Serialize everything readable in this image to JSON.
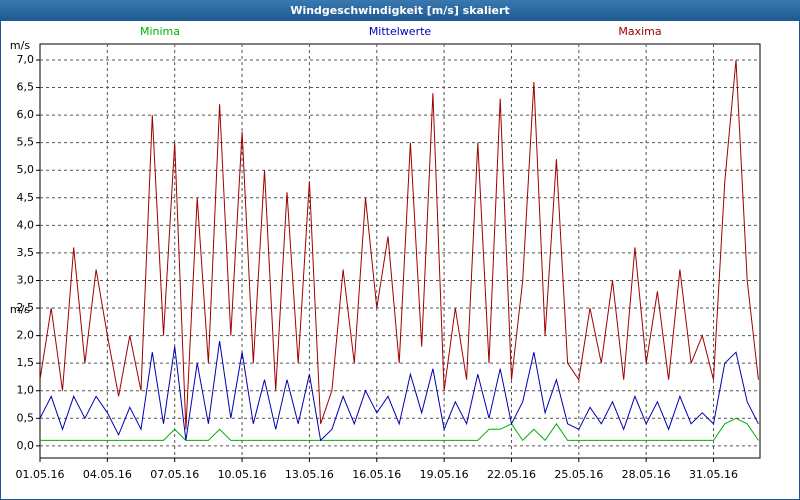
{
  "chart_data": {
    "type": "line",
    "title": "Windgeschwindigkeit [m/s] skaliert",
    "y_unit": "m/s",
    "legend": "top",
    "grid": true,
    "xlim": [
      0,
      32.07
    ],
    "ylim": [
      -0.22,
      7.29
    ],
    "xticks": [
      {
        "value": 0,
        "label": "01.05.16"
      },
      {
        "value": 3,
        "label": "04.05.16"
      },
      {
        "value": 6,
        "label": "07.05.16"
      },
      {
        "value": 9,
        "label": "10.05.16"
      },
      {
        "value": 12,
        "label": "13.05.16"
      },
      {
        "value": 15,
        "label": "16.05.16"
      },
      {
        "value": 18,
        "label": "19.05.16"
      },
      {
        "value": 21,
        "label": "22.05.16"
      },
      {
        "value": 24,
        "label": "25.05.16"
      },
      {
        "value": 27,
        "label": "28.05.16"
      },
      {
        "value": 30,
        "label": "31.05.16"
      }
    ],
    "yticks": [
      {
        "value": 0,
        "label": "0,0"
      },
      {
        "value": 0.5,
        "label": "0,5"
      },
      {
        "value": 1,
        "label": "1,0"
      },
      {
        "value": 1.5,
        "label": "1,5"
      },
      {
        "value": 2,
        "label": "2,0"
      },
      {
        "value": 2.5,
        "label": "2,5"
      },
      {
        "value": 3,
        "label": "3,0"
      },
      {
        "value": 3.5,
        "label": "3,5"
      },
      {
        "value": 4,
        "label": "4,0"
      },
      {
        "value": 4.5,
        "label": "4,5"
      },
      {
        "value": 5,
        "label": "5,0"
      },
      {
        "value": 5.5,
        "label": "5,5"
      },
      {
        "value": 6,
        "label": "6,0"
      },
      {
        "value": 6.5,
        "label": "6,5"
      },
      {
        "value": 7,
        "label": "7,0"
      }
    ],
    "x": [
      0,
      0.5,
      1,
      1.5,
      2,
      2.5,
      3,
      3.5,
      4,
      4.5,
      5,
      5.5,
      6,
      6.5,
      7,
      7.5,
      8,
      8.5,
      9,
      9.5,
      10,
      10.5,
      11,
      11.5,
      12,
      12.5,
      13,
      13.5,
      14,
      14.5,
      15,
      15.5,
      16,
      16.5,
      17,
      17.5,
      18,
      18.5,
      19,
      19.5,
      20,
      20.5,
      21,
      21.5,
      22,
      22.5,
      23,
      23.5,
      24,
      24.5,
      25,
      25.5,
      26,
      26.5,
      27,
      27.5,
      28,
      28.5,
      29,
      29.5,
      30,
      30.5,
      31,
      31.5,
      32
    ],
    "series": [
      {
        "name": "Minima",
        "color": "#00b000",
        "values": [
          0.1,
          0.1,
          0.1,
          0.1,
          0.1,
          0.1,
          0.1,
          0.1,
          0.1,
          0.1,
          0.1,
          0.1,
          0.3,
          0.1,
          0.1,
          0.1,
          0.3,
          0.1,
          0.1,
          0.1,
          0.1,
          0.1,
          0.1,
          0.1,
          0.1,
          0.1,
          0.1,
          0.1,
          0.1,
          0.1,
          0.1,
          0.1,
          0.1,
          0.1,
          0.1,
          0.1,
          0.1,
          0.1,
          0.1,
          0.1,
          0.3,
          0.3,
          0.4,
          0.1,
          0.3,
          0.1,
          0.4,
          0.1,
          0.1,
          0.1,
          0.1,
          0.1,
          0.1,
          0.1,
          0.1,
          0.1,
          0.1,
          0.1,
          0.1,
          0.1,
          0.1,
          0.4,
          0.5,
          0.4,
          0.1
        ]
      },
      {
        "name": "Mittelwerte",
        "color": "#0000b0",
        "values": [
          0.5,
          0.9,
          0.3,
          0.9,
          0.5,
          0.9,
          0.6,
          0.2,
          0.7,
          0.3,
          1.7,
          0.4,
          1.8,
          0.1,
          1.5,
          0.4,
          1.9,
          0.5,
          1.7,
          0.4,
          1.2,
          0.3,
          1.2,
          0.4,
          1.3,
          0.1,
          0.3,
          0.9,
          0.4,
          1.0,
          0.6,
          0.9,
          0.4,
          1.3,
          0.6,
          1.4,
          0.3,
          0.8,
          0.4,
          1.3,
          0.5,
          1.4,
          0.4,
          0.8,
          1.7,
          0.6,
          1.2,
          0.4,
          0.3,
          0.7,
          0.4,
          0.8,
          0.3,
          0.9,
          0.4,
          0.8,
          0.3,
          0.9,
          0.4,
          0.6,
          0.4,
          1.5,
          1.7,
          0.8,
          0.4
        ]
      },
      {
        "name": "Maxima",
        "color": "#a00000",
        "values": [
          1.2,
          2.5,
          1.0,
          3.6,
          1.5,
          3.2,
          2.0,
          0.9,
          2.0,
          1.0,
          6.0,
          2.0,
          5.5,
          0.3,
          4.5,
          1.5,
          6.2,
          2.0,
          5.7,
          1.5,
          5.0,
          1.0,
          4.6,
          1.5,
          4.8,
          0.4,
          1.0,
          3.2,
          1.5,
          4.5,
          2.5,
          3.8,
          1.5,
          5.5,
          1.8,
          6.4,
          1.0,
          2.5,
          1.2,
          5.5,
          1.5,
          6.3,
          1.2,
          3.0,
          6.6,
          2.0,
          5.2,
          1.5,
          1.2,
          2.5,
          1.5,
          3.0,
          1.2,
          3.6,
          1.5,
          2.8,
          1.2,
          3.2,
          1.5,
          2.0,
          1.2,
          4.8,
          7.0,
          3.0,
          1.2
        ]
      }
    ]
  }
}
